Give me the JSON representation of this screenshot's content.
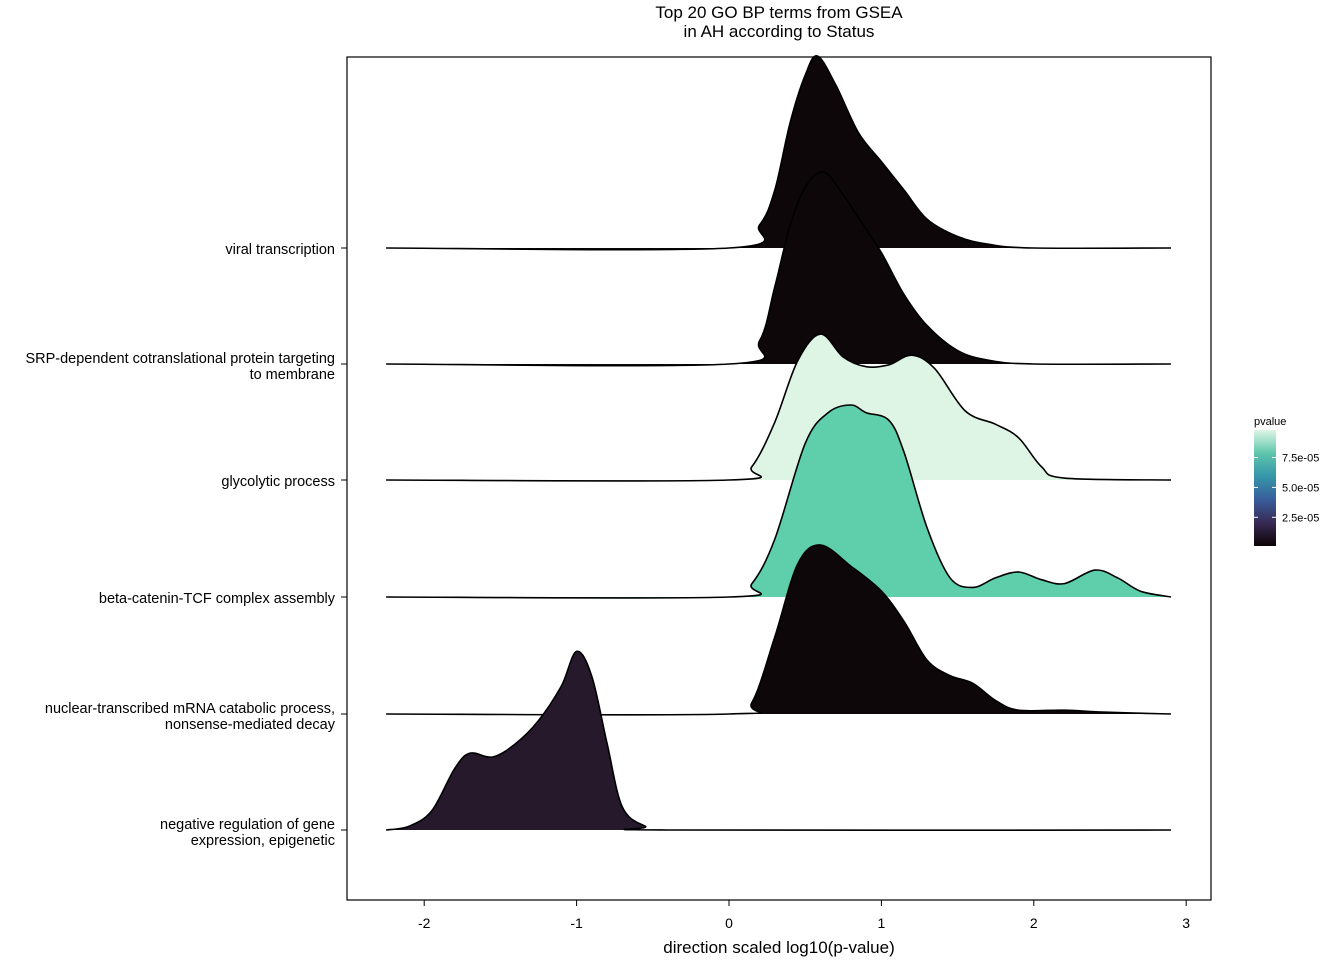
{
  "chart_data": {
    "type": "ridgeline",
    "title": [
      "Top 20 GO BP terms from GSEA",
      "in AH according to Status"
    ],
    "xlabel": "direction scaled log10(p-value)",
    "ylabel": "",
    "xlim": [
      -2.5,
      3.15
    ],
    "xticks": [
      -2,
      -1,
      0,
      1,
      2,
      3
    ],
    "grid": false,
    "legend": {
      "title": "pvalue",
      "position": "right",
      "ticks": [
        "7.5e-05",
        "5.0e-05",
        "2.5e-05"
      ],
      "tick_values": [
        7.5e-05,
        5e-05,
        2.5e-05
      ],
      "range": [
        1e-06,
        9.8e-05
      ],
      "colors": [
        "#0b0405",
        "#382a54",
        "#395d9c",
        "#3496a9",
        "#5fc6ac",
        "#def5e5"
      ]
    },
    "terms": [
      {
        "label": [
          "viral transcription"
        ],
        "pvalue": 1e-06,
        "color": "#0d0709",
        "density": [
          [
            -2.25,
            0
          ],
          [
            0,
            0
          ],
          [
            0.2,
            0.12
          ],
          [
            0.3,
            0.3
          ],
          [
            0.4,
            0.65
          ],
          [
            0.5,
            0.9
          ],
          [
            0.58,
            1.0
          ],
          [
            0.7,
            0.85
          ],
          [
            0.85,
            0.6
          ],
          [
            1.0,
            0.45
          ],
          [
            1.15,
            0.3
          ],
          [
            1.3,
            0.15
          ],
          [
            1.5,
            0.06
          ],
          [
            1.7,
            0.02
          ],
          [
            2.0,
            0
          ],
          [
            2.9,
            0
          ]
        ]
      },
      {
        "label": [
          "SRP-dependent cotranslational protein targeting",
          "to membrane"
        ],
        "pvalue": 1e-06,
        "color": "#0d0709",
        "density": [
          [
            -2.25,
            0
          ],
          [
            0,
            0
          ],
          [
            0.2,
            0.12
          ],
          [
            0.3,
            0.4
          ],
          [
            0.4,
            0.72
          ],
          [
            0.5,
            0.92
          ],
          [
            0.62,
            1.0
          ],
          [
            0.75,
            0.88
          ],
          [
            0.9,
            0.7
          ],
          [
            1.0,
            0.58
          ],
          [
            1.15,
            0.36
          ],
          [
            1.3,
            0.2
          ],
          [
            1.5,
            0.07
          ],
          [
            1.7,
            0.02
          ],
          [
            2.0,
            0
          ],
          [
            2.9,
            0
          ]
        ]
      },
      {
        "label": [
          "glycolytic process"
        ],
        "pvalue": 9.8e-05,
        "color": "#def5e5",
        "density": [
          [
            -2.25,
            0
          ],
          [
            0,
            0
          ],
          [
            0.15,
            0.07
          ],
          [
            0.3,
            0.3
          ],
          [
            0.45,
            0.62
          ],
          [
            0.6,
            0.76
          ],
          [
            0.75,
            0.64
          ],
          [
            0.9,
            0.59
          ],
          [
            1.05,
            0.6
          ],
          [
            1.2,
            0.65
          ],
          [
            1.35,
            0.58
          ],
          [
            1.55,
            0.36
          ],
          [
            1.75,
            0.29
          ],
          [
            1.9,
            0.22
          ],
          [
            2.05,
            0.07
          ],
          [
            2.2,
            0.01
          ],
          [
            2.9,
            0
          ]
        ]
      },
      {
        "label": [
          "beta-catenin-TCF complex assembly"
        ],
        "pvalue": 7.9e-05,
        "color": "#5fceab",
        "density": [
          [
            -2.25,
            0
          ],
          [
            0,
            0
          ],
          [
            0.15,
            0.07
          ],
          [
            0.3,
            0.3
          ],
          [
            0.5,
            0.8
          ],
          [
            0.65,
            0.96
          ],
          [
            0.8,
            1.0
          ],
          [
            0.9,
            0.96
          ],
          [
            1.05,
            0.92
          ],
          [
            1.15,
            0.75
          ],
          [
            1.3,
            0.36
          ],
          [
            1.45,
            0.1
          ],
          [
            1.6,
            0.05
          ],
          [
            1.75,
            0.1
          ],
          [
            1.9,
            0.13
          ],
          [
            2.05,
            0.09
          ],
          [
            2.2,
            0.07
          ],
          [
            2.4,
            0.14
          ],
          [
            2.55,
            0.1
          ],
          [
            2.7,
            0.03
          ],
          [
            2.9,
            0
          ]
        ]
      },
      {
        "label": [
          "nuclear-transcribed mRNA catabolic process,",
          "nonsense-mediated decay"
        ],
        "pvalue": 1e-06,
        "color": "#0d0709",
        "density": [
          [
            -2.25,
            0
          ],
          [
            0,
            0
          ],
          [
            0.15,
            0.06
          ],
          [
            0.3,
            0.4
          ],
          [
            0.45,
            0.78
          ],
          [
            0.6,
            0.88
          ],
          [
            0.8,
            0.77
          ],
          [
            1.0,
            0.64
          ],
          [
            1.15,
            0.48
          ],
          [
            1.3,
            0.28
          ],
          [
            1.45,
            0.2
          ],
          [
            1.6,
            0.16
          ],
          [
            1.75,
            0.07
          ],
          [
            1.9,
            0.02
          ],
          [
            2.2,
            0.02
          ],
          [
            2.45,
            0.01
          ],
          [
            2.9,
            0
          ]
        ]
      },
      {
        "label": [
          "negative regulation of gene",
          "expression, epigenetic"
        ],
        "pvalue": 1.4e-05,
        "color": "#26192b",
        "density": [
          [
            -2.25,
            0
          ],
          [
            -2.1,
            0.02
          ],
          [
            -1.95,
            0.1
          ],
          [
            -1.8,
            0.32
          ],
          [
            -1.7,
            0.4
          ],
          [
            -1.55,
            0.38
          ],
          [
            -1.4,
            0.45
          ],
          [
            -1.25,
            0.57
          ],
          [
            -1.1,
            0.75
          ],
          [
            -1.0,
            0.93
          ],
          [
            -0.9,
            0.8
          ],
          [
            -0.8,
            0.45
          ],
          [
            -0.7,
            0.12
          ],
          [
            -0.55,
            0.02
          ],
          [
            -0.4,
            0
          ],
          [
            2.9,
            0
          ]
        ]
      }
    ]
  }
}
